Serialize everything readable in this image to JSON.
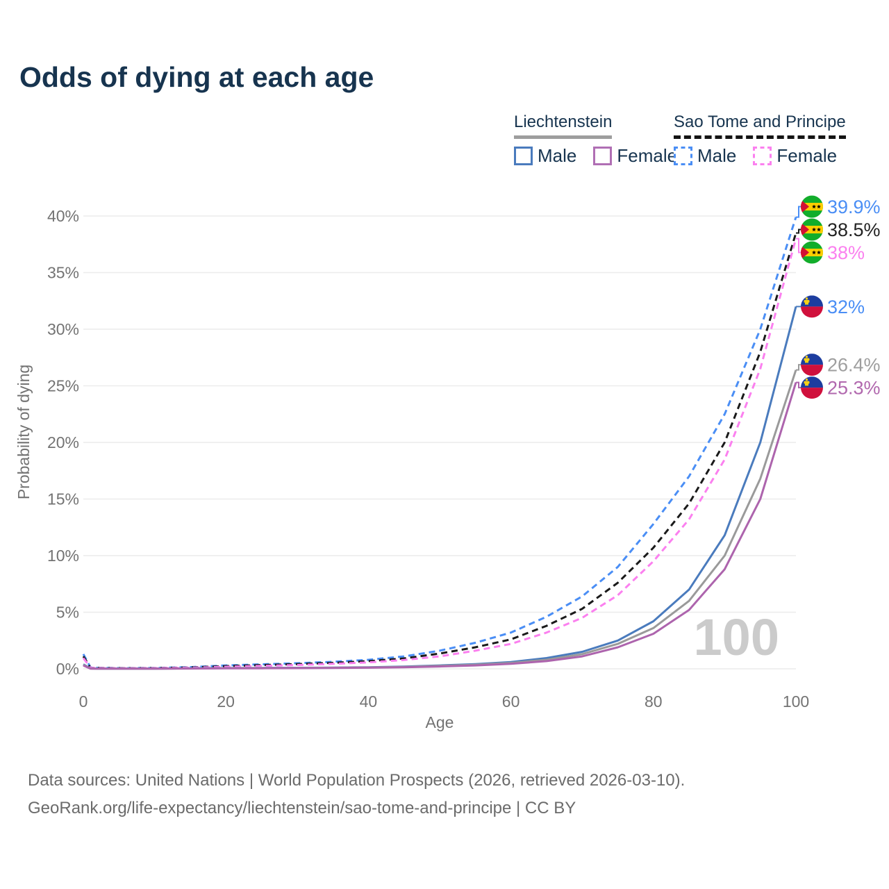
{
  "title": "Odds of dying at each age",
  "legend": {
    "groups": [
      {
        "heading": "Liechtenstein",
        "style": "solid",
        "underline_color": "#9e9e9e",
        "items": [
          {
            "label": "Male",
            "color": "#4a7bbd",
            "dash": false
          },
          {
            "label": "Female",
            "color": "#b06fb4",
            "dash": false
          }
        ]
      },
      {
        "heading": "Sao Tome and Principe",
        "style": "dashed",
        "underline_color": "#141414",
        "items": [
          {
            "label": "Male",
            "color": "#4a8ef5",
            "dash": true
          },
          {
            "label": "Female",
            "color": "#fb80ef",
            "dash": true
          }
        ]
      }
    ]
  },
  "chart_data": {
    "type": "line",
    "title": "Odds of dying at each age",
    "xlabel": "Age",
    "ylabel": "Probability of dying",
    "watermark": "100",
    "xlim": [
      0,
      100
    ],
    "ylim": [
      0,
      42
    ],
    "xticks": [
      0,
      20,
      40,
      60,
      80,
      100
    ],
    "yticks": [
      0,
      5,
      10,
      15,
      20,
      25,
      30,
      35,
      40
    ],
    "grid": "horizontal",
    "legend_position": "top-right",
    "colors": {
      "gridline": "#ececec",
      "tick_text": "#737373",
      "watermark_text": "#cbcbcb"
    },
    "flag_colors": {
      "sao-tome": {
        "green": "#12AD2B",
        "yellow": "#FFCE00",
        "red": "#D21034",
        "star": "#000000"
      },
      "liechtenstein": {
        "blue": "#1d3d9f",
        "red": "#d0103c",
        "crown": "#f7d116"
      }
    },
    "series": [
      {
        "id": "stp-male",
        "country": "Sao Tome and Principe",
        "sex": "Male",
        "color": "#4a8ef5",
        "label_color": "#4a8ef5",
        "dash": true,
        "flag": "sao-tome",
        "end_label": "39.9%",
        "points": [
          [
            0,
            1.3
          ],
          [
            1,
            0.12
          ],
          [
            2,
            0.09
          ],
          [
            5,
            0.07
          ],
          [
            10,
            0.08
          ],
          [
            15,
            0.15
          ],
          [
            20,
            0.3
          ],
          [
            25,
            0.4
          ],
          [
            30,
            0.5
          ],
          [
            35,
            0.62
          ],
          [
            40,
            0.8
          ],
          [
            45,
            1.1
          ],
          [
            50,
            1.6
          ],
          [
            55,
            2.3
          ],
          [
            60,
            3.2
          ],
          [
            65,
            4.6
          ],
          [
            70,
            6.4
          ],
          [
            75,
            9.0
          ],
          [
            80,
            12.8
          ],
          [
            85,
            17.0
          ],
          [
            90,
            22.5
          ],
          [
            95,
            30.0
          ],
          [
            100,
            39.9
          ]
        ]
      },
      {
        "id": "stp-total",
        "country": "Sao Tome and Principe",
        "sex": "Both",
        "color": "#1a1a1a",
        "label_color": "#222222",
        "dash": true,
        "flag": "sao-tome",
        "end_label": "38.5%",
        "points": [
          [
            0,
            1.1
          ],
          [
            1,
            0.1
          ],
          [
            2,
            0.08
          ],
          [
            5,
            0.06
          ],
          [
            10,
            0.07
          ],
          [
            15,
            0.12
          ],
          [
            20,
            0.24
          ],
          [
            25,
            0.33
          ],
          [
            30,
            0.42
          ],
          [
            35,
            0.53
          ],
          [
            40,
            0.68
          ],
          [
            45,
            0.92
          ],
          [
            50,
            1.35
          ],
          [
            55,
            1.9
          ],
          [
            60,
            2.6
          ],
          [
            65,
            3.8
          ],
          [
            70,
            5.3
          ],
          [
            75,
            7.6
          ],
          [
            80,
            10.7
          ],
          [
            85,
            14.6
          ],
          [
            90,
            20.0
          ],
          [
            95,
            28.0
          ],
          [
            100,
            38.5
          ]
        ]
      },
      {
        "id": "stp-female",
        "country": "Sao Tome and Principe",
        "sex": "Female",
        "color": "#fb80ef",
        "label_color": "#fb80ef",
        "dash": true,
        "flag": "sao-tome",
        "end_label": "38%",
        "points": [
          [
            0,
            0.95
          ],
          [
            1,
            0.09
          ],
          [
            2,
            0.07
          ],
          [
            5,
            0.05
          ],
          [
            10,
            0.06
          ],
          [
            15,
            0.1
          ],
          [
            20,
            0.18
          ],
          [
            25,
            0.26
          ],
          [
            30,
            0.34
          ],
          [
            35,
            0.44
          ],
          [
            40,
            0.57
          ],
          [
            45,
            0.78
          ],
          [
            50,
            1.1
          ],
          [
            55,
            1.6
          ],
          [
            60,
            2.2
          ],
          [
            65,
            3.2
          ],
          [
            70,
            4.5
          ],
          [
            75,
            6.5
          ],
          [
            80,
            9.5
          ],
          [
            85,
            13.2
          ],
          [
            90,
            18.5
          ],
          [
            95,
            26.5
          ],
          [
            100,
            38.0
          ]
        ]
      },
      {
        "id": "lie-male",
        "country": "Liechtenstein",
        "sex": "Male",
        "color": "#4a7bbd",
        "label_color": "#4a8ef5",
        "dash": false,
        "flag": "liechtenstein",
        "end_label": "32%",
        "points": [
          [
            0,
            0.4
          ],
          [
            1,
            0.03
          ],
          [
            2,
            0.02
          ],
          [
            5,
            0.02
          ],
          [
            10,
            0.02
          ],
          [
            15,
            0.04
          ],
          [
            20,
            0.07
          ],
          [
            25,
            0.08
          ],
          [
            30,
            0.09
          ],
          [
            35,
            0.11
          ],
          [
            40,
            0.14
          ],
          [
            45,
            0.2
          ],
          [
            50,
            0.3
          ],
          [
            55,
            0.42
          ],
          [
            60,
            0.6
          ],
          [
            65,
            0.95
          ],
          [
            70,
            1.5
          ],
          [
            75,
            2.5
          ],
          [
            80,
            4.2
          ],
          [
            85,
            7.0
          ],
          [
            90,
            11.8
          ],
          [
            95,
            20.0
          ],
          [
            100,
            32.0
          ]
        ]
      },
      {
        "id": "lie-total",
        "country": "Liechtenstein",
        "sex": "Both",
        "color": "#9a9a9a",
        "label_color": "#9e9e9e",
        "dash": false,
        "flag": "liechtenstein",
        "end_label": "26.4%",
        "points": [
          [
            0,
            0.35
          ],
          [
            1,
            0.025
          ],
          [
            2,
            0.02
          ],
          [
            5,
            0.015
          ],
          [
            10,
            0.02
          ],
          [
            15,
            0.03
          ],
          [
            20,
            0.06
          ],
          [
            25,
            0.07
          ],
          [
            30,
            0.08
          ],
          [
            35,
            0.1
          ],
          [
            40,
            0.12
          ],
          [
            45,
            0.17
          ],
          [
            50,
            0.26
          ],
          [
            55,
            0.36
          ],
          [
            60,
            0.52
          ],
          [
            65,
            0.8
          ],
          [
            70,
            1.3
          ],
          [
            75,
            2.2
          ],
          [
            80,
            3.6
          ],
          [
            85,
            6.0
          ],
          [
            90,
            10.0
          ],
          [
            95,
            16.8
          ],
          [
            100,
            26.4
          ]
        ]
      },
      {
        "id": "lie-female",
        "country": "Liechtenstein",
        "sex": "Female",
        "color": "#ad64ad",
        "label_color": "#b168ae",
        "dash": false,
        "flag": "liechtenstein",
        "end_label": "25.3%",
        "points": [
          [
            0,
            0.3
          ],
          [
            1,
            0.02
          ],
          [
            2,
            0.015
          ],
          [
            5,
            0.01
          ],
          [
            10,
            0.015
          ],
          [
            15,
            0.025
          ],
          [
            20,
            0.04
          ],
          [
            25,
            0.05
          ],
          [
            30,
            0.06
          ],
          [
            35,
            0.08
          ],
          [
            40,
            0.1
          ],
          [
            45,
            0.14
          ],
          [
            50,
            0.21
          ],
          [
            55,
            0.3
          ],
          [
            60,
            0.44
          ],
          [
            65,
            0.68
          ],
          [
            70,
            1.1
          ],
          [
            75,
            1.9
          ],
          [
            80,
            3.1
          ],
          [
            85,
            5.2
          ],
          [
            90,
            8.8
          ],
          [
            95,
            15.0
          ],
          [
            100,
            25.3
          ]
        ]
      }
    ]
  },
  "footer": {
    "line1": "Data sources: United Nations | World Population Prospects (2026, retrieved 2026-03-10).",
    "line2": "GeoRank.org/life-expectancy/liechtenstein/sao-tome-and-principe | CC BY"
  }
}
